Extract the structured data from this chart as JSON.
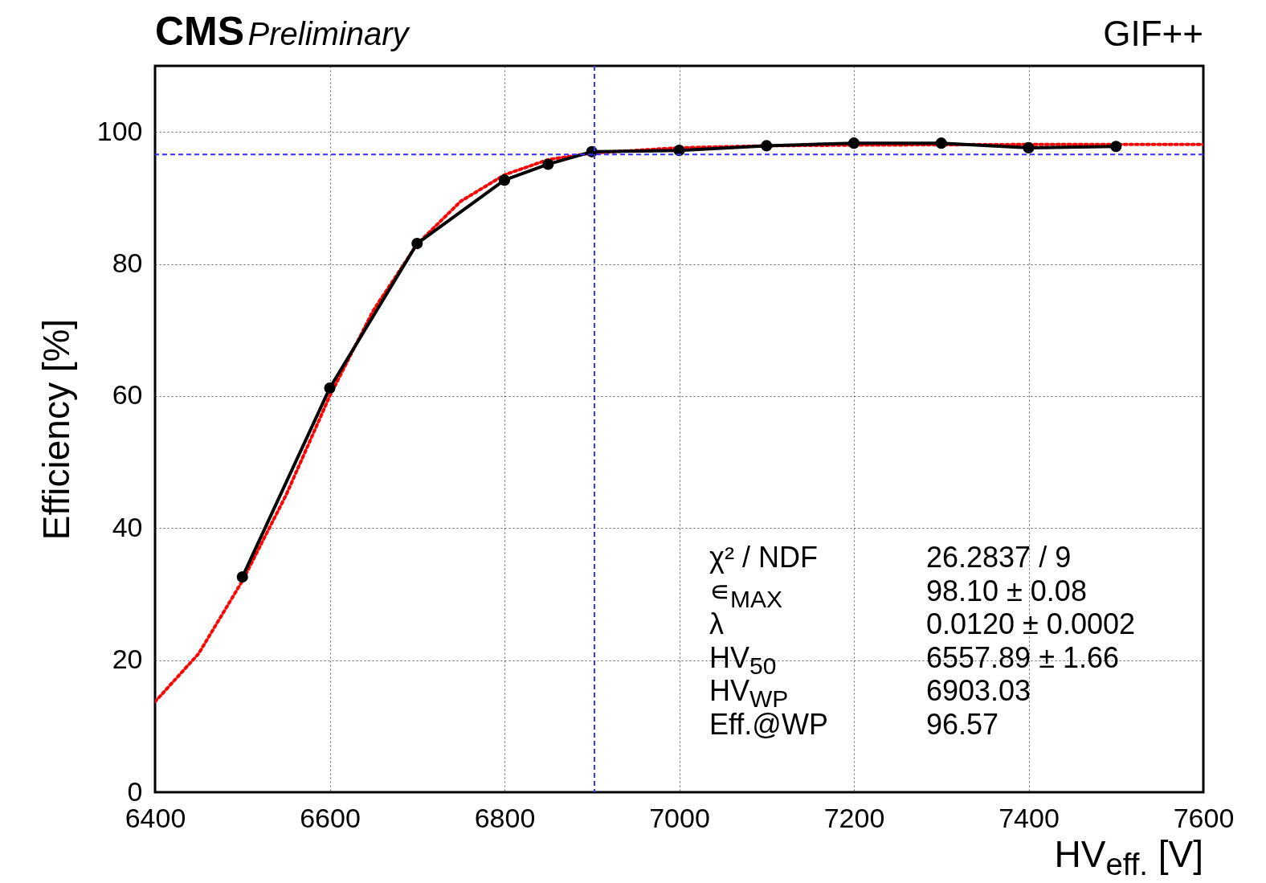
{
  "chart_data": {
    "type": "line",
    "title": "CMS",
    "subtitle": "Preliminary",
    "xlabel": "HV$_{eff.}$ [V]",
    "ylabel": "Efficiency [%]",
    "annotations": [
      "GIF++",
      "χ² / NDF",
      "26.2837 / 9",
      "∊$_{MAX}$",
      "98.10 ± 0.08",
      "λ",
      "0.0120 ± 0.0002",
      "HV$_{50}$",
      "6557.89 ± 1.66",
      "HV$_{WP}$",
      "6903.03",
      "Eff.@WP",
      "96.57"
    ],
    "xlim": [
      6400,
      7600
    ],
    "xticks": [
      6400,
      6600,
      6800,
      7000,
      7200,
      7400,
      7600
    ],
    "ylim": [
      0,
      110
    ],
    "yticks": [
      0,
      20,
      40,
      60,
      80,
      100
    ],
    "grid": true,
    "series": [
      {
        "color": "#000000",
        "marker": "circle",
        "line_style": "solid",
        "x": [
          6500,
          6600,
          6700,
          6800,
          6850,
          6900,
          7000,
          7100,
          7200,
          7300,
          7400,
          7500
        ],
        "values": [
          32.6,
          61.2,
          83.1,
          92.7,
          95.1,
          97.0,
          97.2,
          97.9,
          98.3,
          98.3,
          97.6,
          97.8
        ]
      },
      {
        "color": "#ff0000",
        "marker": "none",
        "line_style": "dotted",
        "x": [
          6400,
          6450,
          6500,
          6550,
          6600,
          6650,
          6700,
          6750,
          6800,
          6850,
          6900,
          7000,
          7100,
          7200,
          7400,
          7600
        ],
        "values": [
          13.7,
          21,
          32,
          45,
          60,
          73,
          83,
          89.5,
          93.5,
          95.8,
          96.8,
          97.6,
          97.9,
          98.0,
          98.1,
          98.1
        ]
      }
    ],
    "ref_lines": [
      {
        "axis": "x",
        "value": 6903.03,
        "color": "#3333ff",
        "line_style": "dashed"
      },
      {
        "axis": "y",
        "value": 96.57,
        "color": "#3333ff",
        "line_style": "dashed"
      }
    ]
  }
}
